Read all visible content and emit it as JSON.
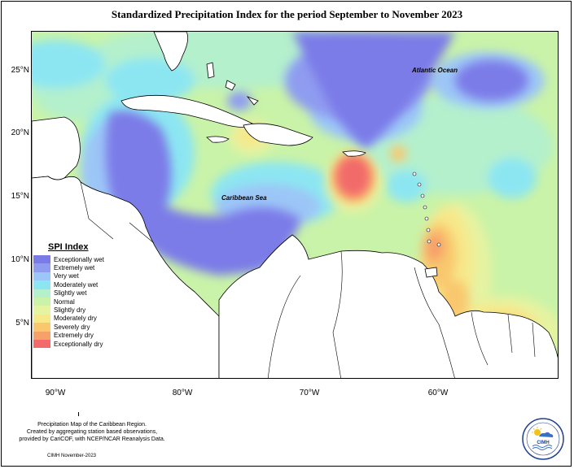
{
  "title": "Standardized Precipitation Index for the period September to November 2023",
  "map": {
    "lat_labels": [
      "25°N",
      "20°N",
      "15°N",
      "10°N",
      "5°N"
    ],
    "lon_labels": [
      "90°W",
      "80°W",
      "70°W",
      "60°W"
    ],
    "place_labels": {
      "atlantic": "Atlantic Ocean",
      "caribbean": "Caribbean Sea"
    }
  },
  "legend": {
    "title": "SPI Index",
    "items": [
      {
        "label": "Exceptionally wet",
        "color": "#7b7be8"
      },
      {
        "label": "Extremely wet",
        "color": "#8f9cf0"
      },
      {
        "label": "Very wet",
        "color": "#9cc6f7"
      },
      {
        "label": "Moderately wet",
        "color": "#8ce6f2"
      },
      {
        "label": "Slightly wet",
        "color": "#b4f0cc"
      },
      {
        "label": "Normal",
        "color": "#c9f3a8"
      },
      {
        "label": "Slightly dry",
        "color": "#e6f3a0"
      },
      {
        "label": "Moderately dry",
        "color": "#f7e88a"
      },
      {
        "label": "Severely dry",
        "color": "#f9c86e"
      },
      {
        "label": "Extremely dry",
        "color": "#f7a06a"
      },
      {
        "label": "Exceptionally dry",
        "color": "#f26a6a"
      }
    ]
  },
  "caption": {
    "line1": "Precipitation Map of the Caribbean Region.",
    "line2": "Created by aggregating station based observations,",
    "line3": "provided by CariCOF, with NCEP/NCAR Reanalysis Data.",
    "credit": "CIMH November-2023"
  },
  "logo": {
    "text": "CIMH"
  }
}
